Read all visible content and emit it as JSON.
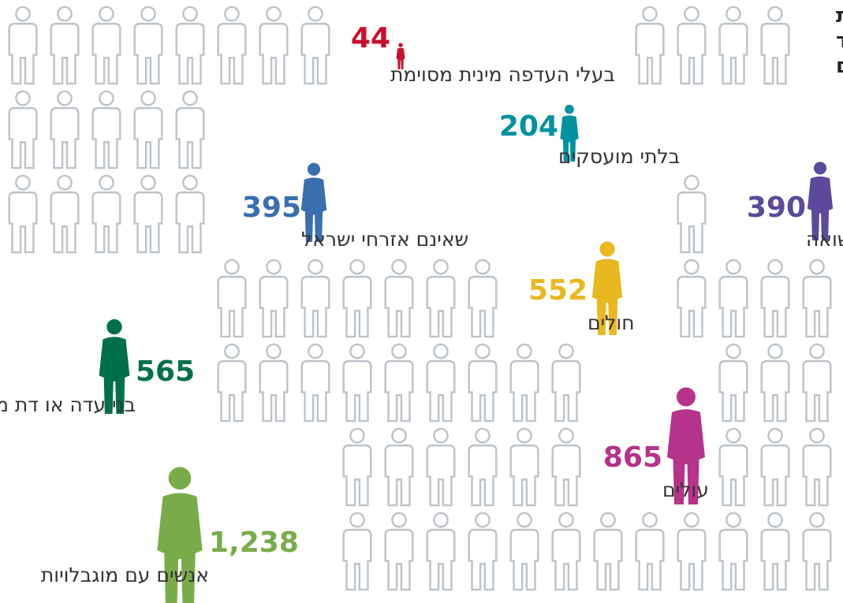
{
  "chart_data": {
    "type": "pictogram",
    "title": [
      "מספר עמותות",
      "המשרתות קהלי יעד",
      "שונים"
    ],
    "categories": [
      "בעלי העדפה מינית מסוימת",
      "בלתי מועסקים",
      "שאינם אזרחי ישראל",
      "ניצולי שואה",
      "חולים",
      "בני עדה או דת מסוימת",
      "עולים",
      "אנשים עם מוגבלויות"
    ],
    "values": [
      44,
      204,
      395,
      390,
      552,
      565,
      865,
      1238
    ],
    "value_labels": [
      "44",
      "204",
      "395",
      "390",
      "552",
      "565",
      "865",
      "1,238"
    ],
    "colors": [
      "#c8102e",
      "#00929f",
      "#3a6fb0",
      "#5b4a9b",
      "#e8b820",
      "#00704a",
      "#b5338a",
      "#7aab4a"
    ]
  }
}
